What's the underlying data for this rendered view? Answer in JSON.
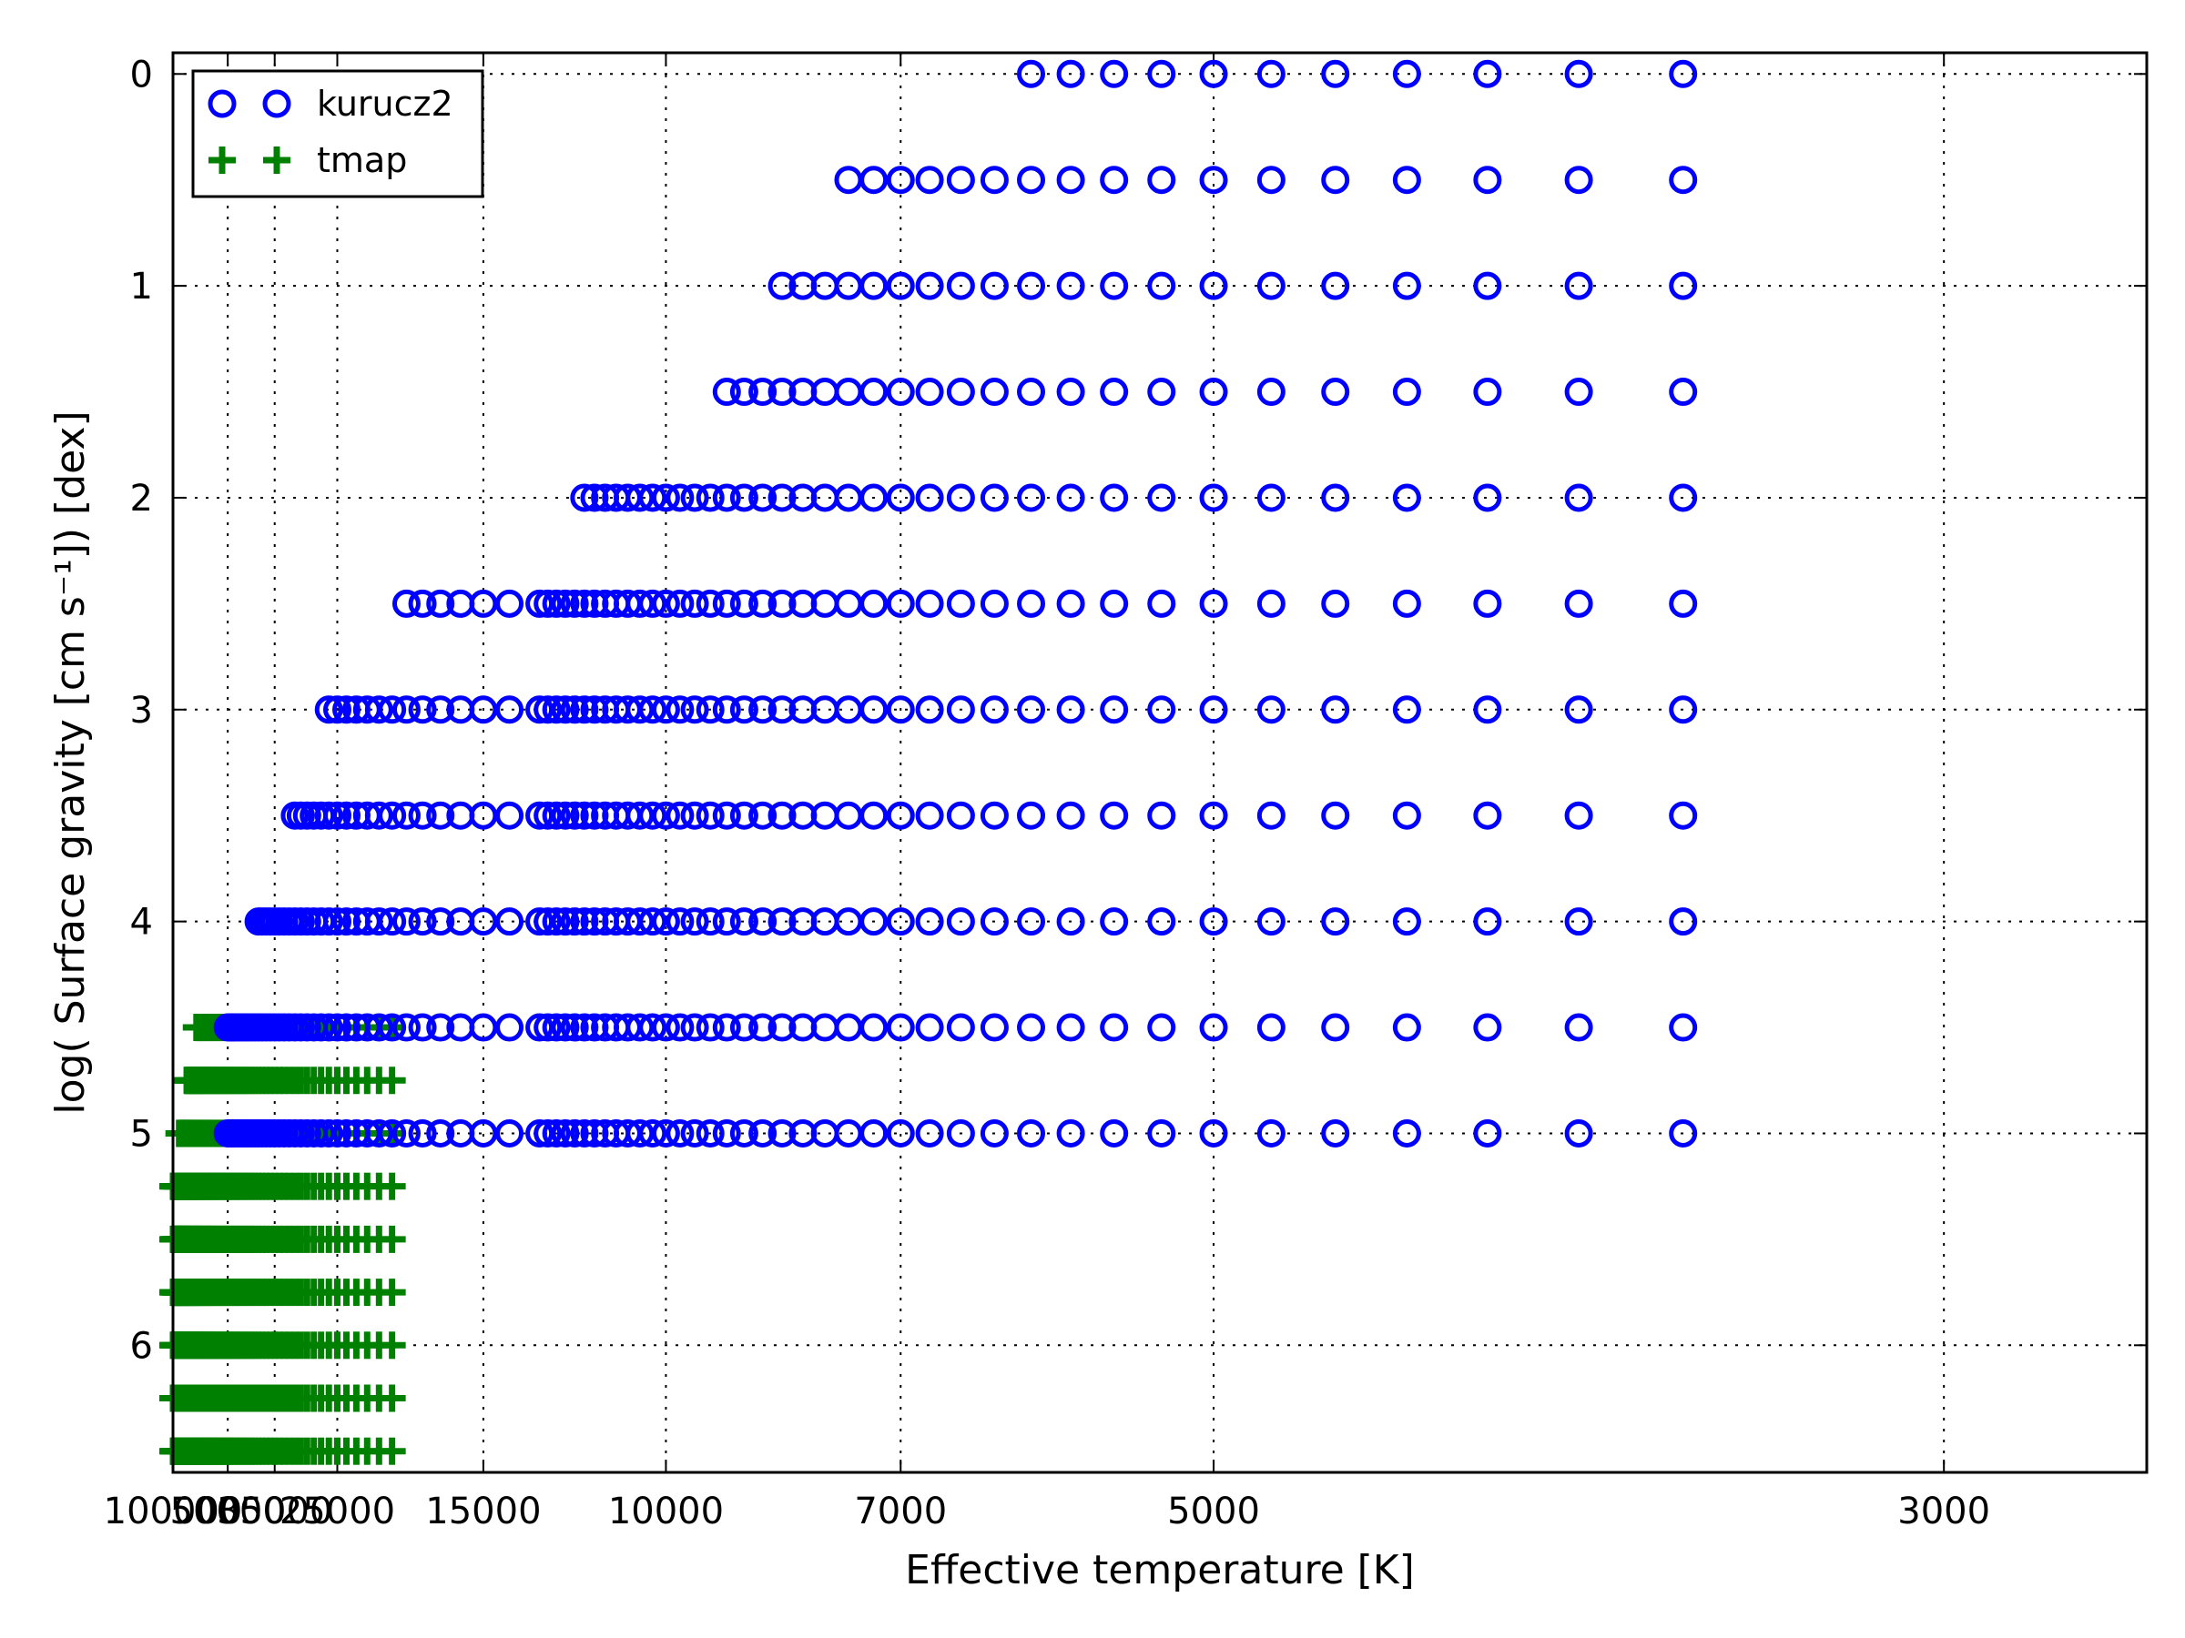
{
  "chart_data": {
    "type": "scatter",
    "xlabel": "Effective temperature [K]",
    "ylabel": "log( Surface gravity [cm s⁻¹]) [dex]",
    "x_scale": "reciprocal",
    "xlim": [
      100000,
      2700
    ],
    "ylim": [
      6.6,
      -0.1
    ],
    "x_ticks": [
      100000,
      50000,
      35000,
      25000,
      15000,
      10000,
      7000,
      5000,
      3000
    ],
    "x_tick_labels": [
      "100000",
      "50000",
      "35000",
      "25000",
      "15000",
      "10000",
      "7000",
      "5000",
      "3000"
    ],
    "y_ticks": [
      0,
      1,
      2,
      3,
      4,
      5,
      6
    ],
    "y_tick_labels": [
      "0",
      "1",
      "2",
      "3",
      "4",
      "5",
      "6"
    ],
    "grid": true,
    "legend_position": "top-left",
    "colors": {
      "kurucz2": "#0000ff",
      "tmap": "#008000"
    },
    "series": [
      {
        "name": "kurucz2",
        "marker": "circle",
        "points": [
          {
            "logg": 0.0,
            "teff": [
              6000,
              5750,
              5500,
              5250,
              5000,
              4750,
              4500,
              4250,
              4000,
              3750,
              3500
            ]
          },
          {
            "logg": 0.5,
            "teff": [
              7500,
              7250,
              7000,
              6750,
              6500,
              6250,
              6000,
              5750,
              5500,
              5250,
              5000,
              4750,
              4500,
              4250,
              4000,
              3750,
              3500
            ]
          },
          {
            "logg": 1.0,
            "teff": [
              8250,
              8000,
              7750,
              7500,
              7250,
              7000,
              6750,
              6500,
              6250,
              6000,
              5750,
              5500,
              5250,
              5000,
              4750,
              4500,
              4250,
              4000,
              3750,
              3500
            ]
          },
          {
            "logg": 1.5,
            "teff": [
              9000,
              8750,
              8500,
              8250,
              8000,
              7750,
              7500,
              7250,
              7000,
              6750,
              6500,
              6250,
              6000,
              5750,
              5500,
              5250,
              5000,
              4750,
              4500,
              4250,
              4000,
              3750,
              3500
            ]
          },
          {
            "logg": 2.0,
            "teff": [
              11750,
              11500,
              11250,
              11000,
              10750,
              10500,
              10250,
              10000,
              9750,
              9500,
              9250,
              9000,
              8750,
              8500,
              8250,
              8000,
              7750,
              7500,
              7250,
              7000,
              6750,
              6500,
              6250,
              6000,
              5750,
              5500,
              5250,
              5000,
              4750,
              4500,
              4250,
              4000,
              3750,
              3500
            ]
          },
          {
            "logg": 2.5,
            "teff": [
              19000,
              18000,
              17000,
              16000,
              15000,
              14000,
              13000,
              12750,
              12500,
              12250,
              12000,
              11750,
              11500,
              11250,
              11000,
              10750,
              10500,
              10250,
              10000,
              9750,
              9500,
              9250,
              9000,
              8750,
              8500,
              8250,
              8000,
              7750,
              7500,
              7250,
              7000,
              6750,
              6500,
              6250,
              6000,
              5750,
              5500,
              5250,
              5000,
              4750,
              4500,
              4250,
              4000,
              3750,
              3500
            ]
          },
          {
            "logg": 3.0,
            "teff": [
              26000,
              25000,
              24000,
              23000,
              22000,
              21000,
              20000,
              19000,
              18000,
              17000,
              16000,
              15000,
              14000,
              13000,
              12750,
              12500,
              12250,
              12000,
              11750,
              11500,
              11250,
              11000,
              10750,
              10500,
              10250,
              10000,
              9750,
              9500,
              9250,
              9000,
              8750,
              8500,
              8250,
              8000,
              7750,
              7500,
              7250,
              7000,
              6750,
              6500,
              6250,
              6000,
              5750,
              5500,
              5250,
              5000,
              4750,
              4500,
              4250,
              4000,
              3750,
              3500
            ]
          },
          {
            "logg": 3.5,
            "teff": [
              31000,
              30000,
              29000,
              28000,
              27000,
              26000,
              25000,
              24000,
              23000,
              22000,
              21000,
              20000,
              19000,
              18000,
              17000,
              16000,
              15000,
              14000,
              13000,
              12750,
              12500,
              12250,
              12000,
              11750,
              11500,
              11250,
              11000,
              10750,
              10500,
              10250,
              10000,
              9750,
              9500,
              9250,
              9000,
              8750,
              8500,
              8250,
              8000,
              7750,
              7500,
              7250,
              7000,
              6750,
              6500,
              6250,
              6000,
              5750,
              5500,
              5250,
              5000,
              4750,
              4500,
              4250,
              4000,
              3750,
              3500
            ]
          },
          {
            "logg": 4.0,
            "teff": [
              39000,
              38000,
              37000,
              36000,
              35000,
              34000,
              33000,
              32000,
              31000,
              30000,
              29000,
              28000,
              27000,
              26000,
              25000,
              24000,
              23000,
              22000,
              21000,
              20000,
              19000,
              18000,
              17000,
              16000,
              15000,
              14000,
              13000,
              12750,
              12500,
              12250,
              12000,
              11750,
              11500,
              11250,
              11000,
              10750,
              10500,
              10250,
              10000,
              9750,
              9500,
              9250,
              9000,
              8750,
              8500,
              8250,
              8000,
              7750,
              7500,
              7250,
              7000,
              6750,
              6500,
              6250,
              6000,
              5750,
              5500,
              5250,
              5000,
              4750,
              4500,
              4250,
              4000,
              3750,
              3500
            ]
          },
          {
            "logg": 4.5,
            "teff": [
              50000,
              49000,
              48000,
              47000,
              46000,
              45000,
              44000,
              43000,
              42000,
              41000,
              40000,
              39000,
              38000,
              37000,
              36000,
              35000,
              34000,
              33000,
              32000,
              31000,
              30000,
              29000,
              28000,
              27000,
              26000,
              25000,
              24000,
              23000,
              22000,
              21000,
              20000,
              19000,
              18000,
              17000,
              16000,
              15000,
              14000,
              13000,
              12750,
              12500,
              12250,
              12000,
              11750,
              11500,
              11250,
              11000,
              10750,
              10500,
              10250,
              10000,
              9750,
              9500,
              9250,
              9000,
              8750,
              8500,
              8250,
              8000,
              7750,
              7500,
              7250,
              7000,
              6750,
              6500,
              6250,
              6000,
              5750,
              5500,
              5250,
              5000,
              4750,
              4500,
              4250,
              4000,
              3750,
              3500
            ]
          },
          {
            "logg": 5.0,
            "teff": [
              50000,
              49000,
              48000,
              47000,
              46000,
              45000,
              44000,
              43000,
              42000,
              41000,
              40000,
              39000,
              38000,
              37000,
              36000,
              35000,
              34000,
              33000,
              32000,
              31000,
              30000,
              29000,
              28000,
              27000,
              26000,
              25000,
              24000,
              23000,
              22000,
              21000,
              20000,
              19000,
              18000,
              17000,
              16000,
              15000,
              14000,
              13000,
              12750,
              12500,
              12250,
              12000,
              11750,
              11500,
              11250,
              11000,
              10750,
              10500,
              10250,
              10000,
              9750,
              9500,
              9250,
              9000,
              8750,
              8500,
              8250,
              8000,
              7750,
              7500,
              7250,
              7000,
              6750,
              6500,
              6250,
              6000,
              5750,
              5500,
              5250,
              5000,
              4750,
              4500,
              4250,
              4000,
              3750,
              3500
            ]
          }
        ]
      },
      {
        "name": "tmap",
        "marker": "plus",
        "points": [
          {
            "logg": 4.5,
            "teff_min": 20000,
            "teff_max": 70000,
            "teff_step": 1000
          },
          {
            "logg": 4.75,
            "teff_min": 20000,
            "teff_max": 80000,
            "teff_step": 1000
          },
          {
            "logg": 5.0,
            "teff_min": 20000,
            "teff_max": 90000,
            "teff_step": 1000
          },
          {
            "logg": 5.25,
            "teff_min": 20000,
            "teff_max": 100000,
            "teff_step": 1000
          },
          {
            "logg": 5.5,
            "teff_min": 20000,
            "teff_max": 100000,
            "teff_step": 1000
          },
          {
            "logg": 5.75,
            "teff_min": 20000,
            "teff_max": 100000,
            "teff_step": 1000
          },
          {
            "logg": 6.0,
            "teff_min": 20000,
            "teff_max": 100000,
            "teff_step": 1000
          },
          {
            "logg": 6.25,
            "teff_min": 20000,
            "teff_max": 100000,
            "teff_step": 1000
          },
          {
            "logg": 6.5,
            "teff_min": 20000,
            "teff_max": 100000,
            "teff_step": 1000
          }
        ]
      }
    ]
  }
}
